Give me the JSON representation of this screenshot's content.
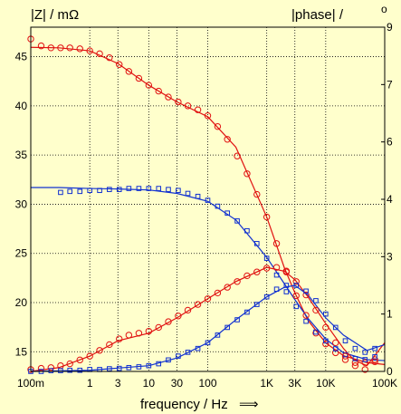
{
  "chart_data": {
    "type": "scatter",
    "x_scale": "log",
    "grid": true,
    "xlim": [
      0.1,
      100000
    ],
    "ylim": [
      13,
      48
    ],
    "y2lim": [
      0,
      9
    ],
    "xlabel": "frequency / Hz",
    "xlabel_arrow": "⟹",
    "ylabel_left": "|Z| / mΩ",
    "ylabel_right": "|phase| /",
    "ylabel_right_unit": "o",
    "x_ticks": [
      {
        "v": 0.1,
        "label": "100m"
      },
      {
        "v": 1,
        "label": "1"
      },
      {
        "v": 3,
        "label": "3"
      },
      {
        "v": 10,
        "label": "10"
      },
      {
        "v": 30,
        "label": "30"
      },
      {
        "v": 100,
        "label": "100"
      },
      {
        "v": 1000,
        "label": "1K"
      },
      {
        "v": 3000,
        "label": "3K"
      },
      {
        "v": 10000,
        "label": "10K"
      },
      {
        "v": 100000,
        "label": "100K"
      }
    ],
    "y_left_ticks": [
      {
        "v": 15,
        "label": "15"
      },
      {
        "v": 20,
        "label": "20"
      },
      {
        "v": 25,
        "label": "25"
      },
      {
        "v": 30,
        "label": "30"
      },
      {
        "v": 35,
        "label": "35"
      },
      {
        "v": 40,
        "label": "40"
      },
      {
        "v": 45,
        "label": "45"
      }
    ],
    "y_right_ticks": [
      {
        "v": 0,
        "label": "0"
      },
      {
        "v": 1.5,
        "label": "1"
      },
      {
        "v": 3,
        "label": "3"
      },
      {
        "v": 4.5,
        "label": "4"
      },
      {
        "v": 6,
        "label": "6"
      },
      {
        "v": 7.5,
        "label": "7"
      },
      {
        "v": 9,
        "label": "9"
      }
    ],
    "colors": {
      "red": "#e01010",
      "blue": "#1030d0",
      "grid": "#000000",
      "background": "#ffffcc"
    },
    "series": [
      {
        "color": "red",
        "marker": "circle",
        "axis": "left",
        "kind": "magnitude",
        "x": [
          0.1,
          0.15,
          0.22,
          0.32,
          0.46,
          0.68,
          1,
          1.47,
          2.15,
          3.16,
          4.6,
          6.8,
          10,
          14.7,
          21.5,
          31.6,
          46,
          68,
          100,
          147,
          215,
          316,
          464,
          681,
          1000,
          1470,
          2150,
          3160,
          4640,
          6810,
          10000,
          14700,
          21500,
          31600,
          46400,
          68100
        ],
        "y": [
          46.8,
          46.1,
          45.9,
          45.9,
          45.9,
          45.8,
          45.6,
          45.3,
          44.9,
          44.2,
          43.5,
          42.8,
          42.1,
          41.5,
          40.9,
          40.4,
          40.0,
          39.6,
          39.0,
          37.9,
          36.6,
          34.9,
          33.1,
          31.0,
          28.7,
          26.0,
          23.2,
          20.7,
          18.7,
          16.9,
          15.8,
          14.9,
          14.2,
          13.9,
          13.9,
          14.2
        ],
        "curve_x": [
          0.1,
          0.3,
          1,
          3,
          10,
          30,
          100,
          300,
          1000,
          2000,
          3000,
          5000,
          10000,
          20000,
          50000,
          100000
        ],
        "curve_y": [
          45.95,
          45.9,
          45.6,
          44.3,
          42.1,
          40.4,
          38.9,
          35.8,
          28.7,
          23.5,
          21.0,
          18.2,
          15.9,
          14.6,
          13.9,
          13.7
        ]
      },
      {
        "color": "blue",
        "marker": "square",
        "axis": "left",
        "kind": "magnitude",
        "x": [
          0.32,
          0.46,
          0.68,
          1,
          1.47,
          2.15,
          3.16,
          4.6,
          6.8,
          10,
          14.7,
          21.5,
          31.6,
          46,
          68,
          100,
          147,
          215,
          316,
          464,
          681,
          1000,
          1470,
          2150,
          3160,
          4640,
          6810,
          10000,
          14700,
          21500,
          31600,
          46400,
          68100
        ],
        "y": [
          31.2,
          31.3,
          31.3,
          31.4,
          31.4,
          31.5,
          31.5,
          31.6,
          31.6,
          31.6,
          31.6,
          31.5,
          31.4,
          31.1,
          30.8,
          30.4,
          29.8,
          29.1,
          28.3,
          27.3,
          26.0,
          24.5,
          22.8,
          21.1,
          19.6,
          18.1,
          17.0,
          16.1,
          15.3,
          14.7,
          14.3,
          14.2,
          14.5
        ],
        "curve_x": [
          0.1,
          0.3,
          1,
          3,
          10,
          30,
          100,
          300,
          1000,
          2000,
          3000,
          5000,
          10000,
          20000,
          50000,
          100000
        ],
        "curve_y": [
          31.7,
          31.7,
          31.6,
          31.55,
          31.45,
          31.1,
          30.3,
          28.4,
          24.6,
          21.9,
          20.3,
          18.4,
          16.3,
          14.9,
          14.2,
          14.1
        ]
      },
      {
        "color": "red",
        "marker": "circle",
        "axis": "right",
        "kind": "phase",
        "x": [
          0.1,
          0.15,
          0.22,
          0.32,
          0.46,
          0.68,
          1,
          1.47,
          2.15,
          3.16,
          4.6,
          6.8,
          10,
          14.7,
          21.5,
          31.6,
          46,
          68,
          100,
          147,
          215,
          316,
          464,
          681,
          1000,
          1470,
          2150,
          3160,
          4640,
          6810,
          10000,
          14700,
          21500,
          31600,
          46400,
          68100
        ],
        "y": [
          0.05,
          0.08,
          0.1,
          0.15,
          0.2,
          0.3,
          0.4,
          0.55,
          0.7,
          0.85,
          0.95,
          1.0,
          1.05,
          1.15,
          1.3,
          1.45,
          1.6,
          1.75,
          1.9,
          2.05,
          2.2,
          2.35,
          2.5,
          2.6,
          2.7,
          2.72,
          2.6,
          2.35,
          2.0,
          1.6,
          1.15,
          0.75,
          0.4,
          0.15,
          0.05,
          0.25
        ],
        "curve_x": [
          0.1,
          0.3,
          1,
          3,
          10,
          30,
          100,
          300,
          1000,
          2000,
          3000,
          5000,
          10000,
          20000,
          30000,
          50000,
          100000
        ],
        "curve_y": [
          0.0,
          0.1,
          0.4,
          0.8,
          1.0,
          1.4,
          1.9,
          2.35,
          2.72,
          2.62,
          2.4,
          1.95,
          1.25,
          0.6,
          0.3,
          0.15,
          0.75
        ]
      },
      {
        "color": "blue",
        "marker": "square",
        "axis": "right",
        "kind": "phase",
        "x": [
          0.1,
          0.15,
          0.22,
          0.32,
          0.46,
          0.68,
          1,
          1.47,
          2.15,
          3.16,
          4.6,
          6.8,
          10,
          14.7,
          21.5,
          31.6,
          46,
          68,
          100,
          147,
          215,
          316,
          464,
          681,
          1000,
          1470,
          2150,
          3160,
          4640,
          6810,
          10000,
          14700,
          21500,
          31600,
          46400,
          68100
        ],
        "y": [
          0.0,
          0.0,
          0.02,
          0.02,
          0.03,
          0.03,
          0.05,
          0.05,
          0.07,
          0.08,
          0.1,
          0.12,
          0.15,
          0.2,
          0.3,
          0.4,
          0.5,
          0.6,
          0.75,
          0.95,
          1.15,
          1.35,
          1.55,
          1.75,
          1.95,
          2.15,
          2.25,
          2.25,
          2.1,
          1.85,
          1.5,
          1.15,
          0.8,
          0.6,
          0.5,
          0.6
        ],
        "curve_x": [
          0.1,
          1,
          10,
          30,
          100,
          300,
          1000,
          2000,
          3000,
          5000,
          10000,
          20000,
          50000,
          100000
        ],
        "curve_y": [
          0.0,
          0.03,
          0.15,
          0.35,
          0.75,
          1.35,
          1.95,
          2.2,
          2.25,
          2.0,
          1.4,
          0.95,
          0.55,
          0.7
        ]
      }
    ]
  }
}
